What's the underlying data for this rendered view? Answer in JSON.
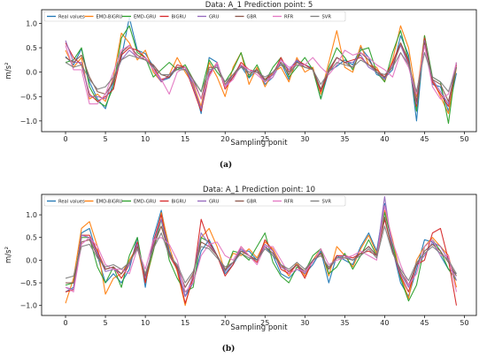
{
  "figure": {
    "caption_a": "(a)",
    "caption_b": "(b)"
  },
  "chart_data": [
    {
      "type": "line",
      "title": "Data: A_1 Prediction point: 5",
      "xlabel": "Sampling ponit",
      "ylabel": "m/s²",
      "xlim": [
        -3,
        51.5
      ],
      "ylim": [
        -1.22,
        1.28
      ],
      "xticks": [
        0,
        5,
        10,
        15,
        20,
        25,
        30,
        35,
        40,
        45,
        50
      ],
      "yticks": [
        -1.0,
        -0.5,
        0.0,
        0.5,
        1.0
      ],
      "ytick_labels": [
        "−1.0",
        "−0.5",
        "0.0",
        "0.5",
        "1.0"
      ],
      "grid": false,
      "legend": "top-left",
      "series": [
        {
          "name": "Real values",
          "color": "#1f77b4",
          "values": [
            0.32,
            0.15,
            0.48,
            -0.2,
            -0.55,
            -0.75,
            -0.2,
            0.3,
            1.12,
            0.45,
            0.38,
            0.12,
            -0.18,
            -0.12,
            0.1,
            0.05,
            -0.22,
            -0.85,
            0.3,
            0.2,
            -0.3,
            -0.1,
            0.12,
            -0.12,
            0.05,
            -0.25,
            -0.1,
            0.2,
            -0.15,
            0.22,
            0.15,
            0.08,
            -0.55,
            0.02,
            0.12,
            0.25,
            0.15,
            0.5,
            0.3,
            -0.05,
            -0.12,
            0.05,
            0.75,
            0.35,
            -1.0,
            0.72,
            -0.25,
            -0.3,
            -0.8,
            -0.02
          ]
        },
        {
          "name": "EMD-BiGRU",
          "color": "#ff7f0e",
          "values": [
            0.45,
            0.1,
            0.3,
            -0.55,
            -0.45,
            -0.6,
            -0.1,
            0.8,
            0.6,
            0.25,
            0.45,
            0.0,
            -0.2,
            -0.05,
            0.3,
            0.0,
            -0.25,
            -0.7,
            0.2,
            -0.1,
            -0.5,
            0.1,
            0.4,
            -0.25,
            0.1,
            -0.3,
            0.0,
            0.1,
            -0.2,
            0.3,
            0.0,
            0.1,
            -0.45,
            0.2,
            0.85,
            0.1,
            0.0,
            0.55,
            0.15,
            0.1,
            -0.2,
            0.25,
            0.95,
            0.5,
            -0.5,
            0.75,
            -0.15,
            -0.5,
            -0.85,
            0.1
          ]
        },
        {
          "name": "EMD-GRU",
          "color": "#2ca02c",
          "values": [
            0.2,
            0.25,
            0.5,
            -0.3,
            -0.6,
            -0.7,
            -0.3,
            0.7,
            0.95,
            0.4,
            0.3,
            -0.1,
            0.05,
            0.2,
            0.05,
            0.15,
            -0.15,
            -0.4,
            0.25,
            0.0,
            -0.2,
            0.05,
            0.4,
            -0.1,
            0.15,
            -0.2,
            0.1,
            0.3,
            -0.1,
            0.1,
            0.3,
            0.05,
            -0.55,
            0.1,
            0.5,
            0.3,
            0.05,
            0.45,
            0.5,
            0.0,
            -0.2,
            0.4,
            0.85,
            0.25,
            -0.8,
            0.75,
            -0.1,
            -0.2,
            -1.05,
            0.2
          ]
        },
        {
          "name": "BiGRU",
          "color": "#d62728",
          "values": [
            0.6,
            0.3,
            0.15,
            -0.45,
            -0.6,
            -0.5,
            -0.35,
            0.35,
            0.5,
            0.45,
            0.3,
            0.1,
            -0.15,
            -0.1,
            0.15,
            0.1,
            -0.35,
            -0.8,
            -0.05,
            0.2,
            -0.35,
            -0.1,
            0.2,
            0.05,
            0.0,
            -0.15,
            -0.05,
            0.3,
            0.0,
            0.25,
            0.15,
            0.05,
            -0.4,
            0.0,
            0.3,
            0.2,
            0.25,
            0.3,
            0.15,
            0.05,
            -0.1,
            0.2,
            0.6,
            0.2,
            -0.7,
            0.7,
            -0.2,
            -0.45,
            -0.7,
            0.15
          ]
        },
        {
          "name": "GRU",
          "color": "#9467bd",
          "values": [
            0.65,
            0.2,
            0.2,
            -0.5,
            -0.5,
            -0.55,
            -0.15,
            0.25,
            0.45,
            0.3,
            0.3,
            0.05,
            -0.2,
            -0.05,
            0.1,
            0.1,
            -0.3,
            -0.75,
            0.0,
            0.15,
            -0.3,
            -0.05,
            0.15,
            0.0,
            0.05,
            -0.2,
            -0.05,
            0.25,
            0.05,
            0.25,
            0.1,
            0.05,
            -0.35,
            0.05,
            0.3,
            0.2,
            0.2,
            0.35,
            0.1,
            0.0,
            -0.15,
            0.15,
            0.55,
            0.15,
            -0.65,
            0.65,
            -0.15,
            -0.4,
            -0.65,
            0.2
          ]
        },
        {
          "name": "GBR",
          "color": "#8c564b",
          "values": [
            0.3,
            0.2,
            0.35,
            -0.1,
            -0.4,
            -0.45,
            -0.2,
            0.4,
            0.55,
            0.35,
            0.25,
            0.15,
            -0.05,
            -0.1,
            0.1,
            0.1,
            -0.15,
            -0.55,
            0.1,
            0.1,
            -0.25,
            -0.05,
            0.15,
            -0.05,
            0.05,
            -0.15,
            0.0,
            0.2,
            -0.05,
            0.2,
            0.1,
            0.05,
            -0.35,
            0.05,
            0.3,
            0.2,
            0.1,
            0.4,
            0.25,
            0.0,
            -0.1,
            0.1,
            0.6,
            0.25,
            -0.6,
            0.6,
            -0.15,
            -0.25,
            -0.6,
            0.1
          ]
        },
        {
          "name": "RFR",
          "color": "#e377c2",
          "values": [
            0.55,
            0.05,
            0.05,
            -0.65,
            -0.65,
            -0.45,
            0.0,
            0.45,
            0.55,
            0.3,
            0.3,
            0.05,
            -0.15,
            -0.45,
            0.0,
            0.1,
            -0.2,
            -0.55,
            -0.1,
            0.2,
            -0.3,
            -0.15,
            0.15,
            0.05,
            -0.05,
            -0.2,
            -0.1,
            0.25,
            0.1,
            0.15,
            0.15,
            0.3,
            0.1,
            -0.05,
            0.15,
            0.45,
            0.35,
            0.4,
            0.3,
            0.15,
            0.05,
            -0.1,
            0.4,
            0.1,
            -0.45,
            0.55,
            -0.3,
            -0.55,
            -0.45,
            0.2
          ]
        },
        {
          "name": "SVR",
          "color": "#7f7f7f",
          "values": [
            0.2,
            0.1,
            0.15,
            -0.15,
            -0.35,
            -0.3,
            -0.1,
            0.25,
            0.35,
            0.3,
            0.25,
            0.1,
            -0.05,
            -0.05,
            0.05,
            0.05,
            -0.15,
            -0.4,
            0.05,
            0.1,
            -0.2,
            -0.05,
            0.1,
            0.0,
            0.0,
            -0.1,
            0.0,
            0.15,
            0.0,
            0.15,
            0.1,
            0.05,
            -0.25,
            0.0,
            0.2,
            0.15,
            0.1,
            0.25,
            0.15,
            0.0,
            -0.05,
            0.1,
            0.4,
            0.15,
            -0.4,
            0.4,
            -0.1,
            -0.2,
            -0.4,
            0.1
          ]
        }
      ]
    },
    {
      "type": "line",
      "title": "Data: A_1 Prediction point: 10",
      "xlabel": "Sampling ponit",
      "ylabel": "m/s²",
      "xlim": [
        -3,
        51.5
      ],
      "ylim": [
        -1.22,
        1.45
      ],
      "xticks": [
        0,
        5,
        10,
        15,
        20,
        25,
        30,
        35,
        40,
        45,
        50
      ],
      "yticks": [
        -1.0,
        -0.5,
        0.0,
        0.5,
        1.0
      ],
      "ytick_labels": [
        "−1.0",
        "−0.5",
        "0.0",
        "0.5",
        "1.0"
      ],
      "grid": false,
      "legend": "top-left",
      "series": [
        {
          "name": "Real values",
          "color": "#1f77b4",
          "values": [
            -0.7,
            -0.6,
            0.6,
            0.7,
            0.1,
            -0.5,
            -0.3,
            -0.5,
            -0.2,
            0.5,
            -0.6,
            0.5,
            1.1,
            0.2,
            -0.2,
            -0.8,
            -0.5,
            0.2,
            0.45,
            0.1,
            -0.3,
            -0.1,
            0.2,
            0.2,
            0.0,
            0.3,
            0.1,
            -0.3,
            -0.4,
            -0.2,
            -0.3,
            -0.1,
            0.2,
            -0.5,
            0.1,
            0.0,
            -0.1,
            0.3,
            0.6,
            0.2,
            1.25,
            0.25,
            -0.5,
            -0.8,
            -0.2,
            0.45,
            0.4,
            0.1,
            -0.2,
            -0.3
          ]
        },
        {
          "name": "EMD-BiGRU",
          "color": "#ff7f0e",
          "values": [
            -0.95,
            -0.4,
            0.7,
            0.85,
            0.3,
            -0.75,
            -0.4,
            -0.3,
            0.0,
            0.3,
            -0.5,
            0.2,
            1.05,
            0.3,
            -0.25,
            -1.0,
            -0.3,
            0.5,
            0.7,
            0.3,
            -0.25,
            0.15,
            0.1,
            0.25,
            0.05,
            0.4,
            0.25,
            -0.1,
            -0.35,
            -0.05,
            -0.35,
            0.0,
            0.25,
            -0.35,
            0.3,
            0.1,
            -0.15,
            0.25,
            0.55,
            0.15,
            1.1,
            0.45,
            -0.35,
            -0.85,
            0.0,
            0.3,
            0.5,
            0.3,
            0.1,
            -0.6
          ]
        },
        {
          "name": "EMD-GRU",
          "color": "#2ca02c",
          "values": [
            -0.55,
            -0.5,
            0.5,
            0.5,
            -0.15,
            -0.5,
            -0.15,
            -0.6,
            0.1,
            0.5,
            -0.45,
            0.2,
            0.9,
            0.0,
            -0.4,
            -0.7,
            -0.6,
            0.5,
            0.4,
            0.1,
            -0.25,
            0.2,
            0.15,
            0.0,
            0.3,
            0.6,
            -0.05,
            -0.35,
            -0.5,
            -0.15,
            -0.25,
            0.1,
            0.25,
            -0.3,
            -0.15,
            0.15,
            -0.2,
            0.1,
            0.45,
            0.1,
            1.05,
            0.35,
            -0.4,
            -0.9,
            -0.55,
            0.3,
            0.45,
            0.2,
            -0.2,
            -0.45
          ]
        },
        {
          "name": "BiGRU",
          "color": "#d62728",
          "values": [
            -0.7,
            -0.65,
            0.55,
            0.55,
            0.2,
            -0.2,
            -0.15,
            -0.4,
            -0.1,
            0.4,
            -0.5,
            0.4,
            1.0,
            0.1,
            -0.2,
            -0.95,
            -0.4,
            0.9,
            0.4,
            0.1,
            -0.35,
            -0.1,
            0.3,
            0.1,
            -0.05,
            0.45,
            0.2,
            -0.2,
            -0.3,
            -0.1,
            -0.4,
            0.0,
            0.15,
            -0.2,
            0.1,
            0.1,
            0.05,
            0.15,
            0.2,
            0.1,
            0.9,
            0.2,
            -0.35,
            -0.7,
            -0.1,
            0.0,
            0.6,
            0.7,
            0.0,
            -1.0
          ]
        },
        {
          "name": "GRU",
          "color": "#9467bd",
          "values": [
            -0.6,
            -0.65,
            0.55,
            0.5,
            0.15,
            -0.25,
            -0.2,
            -0.3,
            -0.1,
            0.35,
            -0.4,
            0.35,
            0.9,
            0.15,
            -0.15,
            -0.8,
            -0.35,
            0.6,
            0.35,
            0.1,
            -0.25,
            -0.05,
            0.25,
            0.1,
            0.0,
            0.35,
            0.2,
            -0.15,
            -0.25,
            -0.1,
            -0.3,
            0.0,
            0.15,
            -0.2,
            0.05,
            0.1,
            0.0,
            0.15,
            0.3,
            0.1,
            1.4,
            0.2,
            -0.3,
            -0.6,
            -0.1,
            0.1,
            0.4,
            0.3,
            0.0,
            -0.45
          ]
        },
        {
          "name": "GBR",
          "color": "#8c564b",
          "values": [
            -0.5,
            -0.5,
            0.4,
            0.45,
            0.1,
            -0.2,
            -0.15,
            -0.3,
            -0.05,
            0.3,
            -0.35,
            0.3,
            0.75,
            0.15,
            -0.15,
            -0.6,
            -0.3,
            0.4,
            0.3,
            0.1,
            -0.2,
            -0.05,
            0.2,
            0.1,
            0.0,
            0.3,
            0.15,
            -0.1,
            -0.25,
            -0.1,
            -0.25,
            0.0,
            0.15,
            -0.2,
            0.05,
            0.05,
            0.0,
            0.15,
            0.3,
            0.1,
            0.95,
            0.2,
            -0.25,
            -0.55,
            -0.1,
            0.2,
            0.35,
            0.2,
            -0.05,
            -0.35
          ]
        },
        {
          "name": "RFR",
          "color": "#e377c2",
          "values": [
            -0.6,
            -0.7,
            0.35,
            0.5,
            0.3,
            -0.1,
            -0.2,
            -0.2,
            -0.3,
            0.25,
            -0.2,
            0.45,
            0.5,
            0.35,
            0.0,
            -0.7,
            -0.5,
            0.1,
            0.35,
            0.4,
            0.1,
            0.0,
            0.3,
            0.1,
            -0.1,
            0.3,
            0.3,
            0.0,
            -0.3,
            -0.2,
            -0.25,
            -0.05,
            0.25,
            -0.1,
            0.0,
            0.05,
            0.1,
            0.2,
            0.1,
            0.0,
            1.2,
            0.4,
            -0.1,
            -0.55,
            -0.3,
            0.3,
            0.45,
            0.1,
            0.1,
            -0.7
          ]
        },
        {
          "name": "SVR",
          "color": "#7f7f7f",
          "values": [
            -0.4,
            -0.35,
            0.3,
            0.35,
            0.05,
            -0.15,
            -0.1,
            -0.2,
            -0.05,
            0.25,
            -0.3,
            0.25,
            0.6,
            0.1,
            -0.1,
            -0.5,
            -0.25,
            0.3,
            0.25,
            0.05,
            -0.15,
            -0.05,
            0.15,
            0.05,
            0.0,
            0.25,
            0.1,
            -0.1,
            -0.2,
            -0.05,
            -0.2,
            0.0,
            0.1,
            -0.15,
            0.05,
            0.05,
            0.0,
            0.1,
            0.25,
            0.05,
            0.75,
            0.15,
            -0.2,
            -0.45,
            -0.05,
            0.15,
            0.3,
            0.15,
            0.0,
            -0.3
          ]
        }
      ]
    }
  ]
}
